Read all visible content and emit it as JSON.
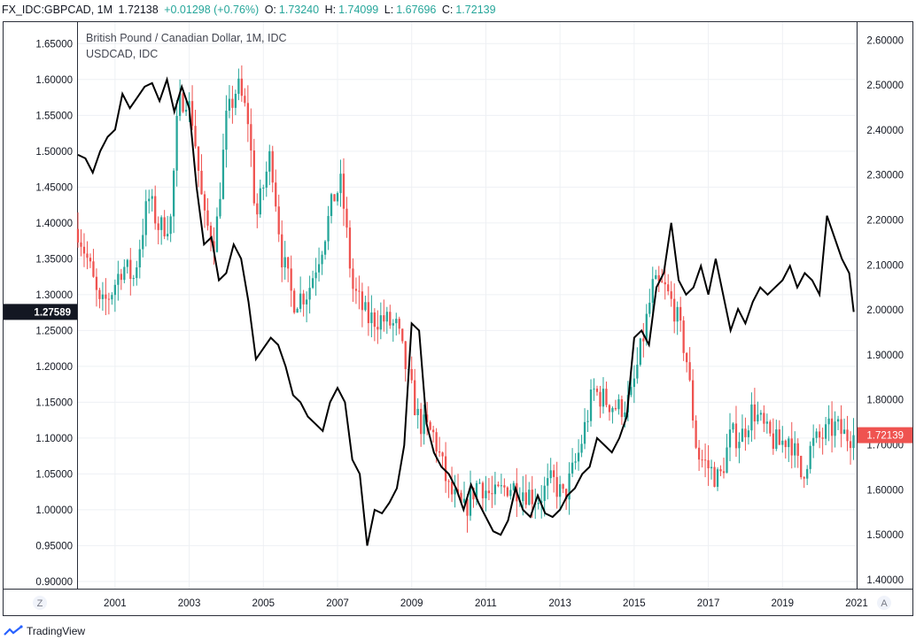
{
  "header": {
    "symbol": "FX_IDC:GBPCAD, 1M",
    "last": "1.72138",
    "change": "+0.01298 (+0.76%)",
    "o_label": "O:",
    "o_value": "1.73240",
    "h_label": "H:",
    "h_value": "1.74099",
    "l_label": "L:",
    "l_value": "1.67696",
    "c_label": "C:",
    "c_value": "1.72139",
    "up_color": "#26a69a"
  },
  "legend": {
    "main_title": "British Pound / Canadian Dollar, 1M, IDC",
    "overlay_title": "USDCAD, IDC"
  },
  "footer": {
    "brand": "TradingView",
    "icon": "tradingview-logo-icon"
  },
  "corner_buttons": {
    "left": "Z",
    "right": "A"
  },
  "chart_data": {
    "type": "candlestick+line",
    "x_ticks": [
      "2001",
      "2003",
      "2005",
      "2007",
      "2009",
      "2011",
      "2013",
      "2015",
      "2017",
      "2019",
      "2021"
    ],
    "x_range": [
      2000.0,
      2021.0
    ],
    "left_axis": {
      "series": "USDCAD",
      "ticks": [
        "1.65000",
        "1.60000",
        "1.55000",
        "1.50000",
        "1.45000",
        "1.40000",
        "1.35000",
        "1.30000",
        "1.25000",
        "1.20000",
        "1.15000",
        "1.10000",
        "1.05000",
        "1.00000",
        "0.95000",
        "0.90000"
      ],
      "range": [
        0.89,
        1.68
      ],
      "current_label": "1.27589",
      "current_value": 1.27589,
      "label_color": "#131722"
    },
    "right_axis": {
      "series": "GBPCAD",
      "ticks": [
        "2.60000",
        "2.50000",
        "2.40000",
        "2.30000",
        "2.20000",
        "2.10000",
        "2.00000",
        "1.90000",
        "1.80000",
        "1.70000",
        "1.60000",
        "1.50000",
        "1.40000"
      ],
      "range": [
        1.38,
        2.64
      ],
      "current_label": "1.72139",
      "current_value": 1.72139,
      "label_color": "#ef5350"
    },
    "up_color": "#26a69a",
    "down_color": "#ef5350",
    "line_color": "#000000",
    "grid": true,
    "gbpcad_anchors": [
      [
        2000.0,
        2.18
      ],
      [
        2000.3,
        2.1
      ],
      [
        2000.6,
        2.0
      ],
      [
        2000.9,
        2.04
      ],
      [
        2001.2,
        2.1
      ],
      [
        2001.5,
        2.07
      ],
      [
        2001.9,
        2.25
      ],
      [
        2002.2,
        2.18
      ],
      [
        2002.5,
        2.2
      ],
      [
        2002.7,
        2.45
      ],
      [
        2002.9,
        2.48
      ],
      [
        2003.1,
        2.42
      ],
      [
        2003.4,
        2.2
      ],
      [
        2003.7,
        2.15
      ],
      [
        2004.0,
        2.42
      ],
      [
        2004.3,
        2.5
      ],
      [
        2004.6,
        2.42
      ],
      [
        2004.8,
        2.2
      ],
      [
        2005.2,
        2.35
      ],
      [
        2005.5,
        2.12
      ],
      [
        2005.8,
        2.02
      ],
      [
        2006.2,
        2.04
      ],
      [
        2006.6,
        2.15
      ],
      [
        2006.9,
        2.25
      ],
      [
        2007.1,
        2.28
      ],
      [
        2007.4,
        2.05
      ],
      [
        2007.8,
        1.98
      ],
      [
        2008.2,
        1.98
      ],
      [
        2008.6,
        1.96
      ],
      [
        2008.9,
        1.85
      ],
      [
        2009.2,
        1.75
      ],
      [
        2009.6,
        1.72
      ],
      [
        2010.0,
        1.6
      ],
      [
        2010.4,
        1.55
      ],
      [
        2010.8,
        1.62
      ],
      [
        2011.2,
        1.58
      ],
      [
        2011.6,
        1.61
      ],
      [
        2012.0,
        1.6
      ],
      [
        2012.4,
        1.58
      ],
      [
        2012.8,
        1.62
      ],
      [
        2013.1,
        1.58
      ],
      [
        2013.5,
        1.68
      ],
      [
        2013.9,
        1.82
      ],
      [
        2014.2,
        1.8
      ],
      [
        2014.6,
        1.78
      ],
      [
        2014.9,
        1.8
      ],
      [
        2015.2,
        1.92
      ],
      [
        2015.5,
        2.05
      ],
      [
        2015.8,
        2.05
      ],
      [
        2016.1,
        2.0
      ],
      [
        2016.4,
        1.9
      ],
      [
        2016.7,
        1.68
      ],
      [
        2017.0,
        1.65
      ],
      [
        2017.3,
        1.62
      ],
      [
        2017.6,
        1.72
      ],
      [
        2017.9,
        1.72
      ],
      [
        2018.2,
        1.78
      ],
      [
        2018.6,
        1.72
      ],
      [
        2018.9,
        1.7
      ],
      [
        2019.2,
        1.72
      ],
      [
        2019.5,
        1.63
      ],
      [
        2019.8,
        1.7
      ],
      [
        2020.1,
        1.72
      ],
      [
        2020.4,
        1.74
      ],
      [
        2020.7,
        1.72
      ],
      [
        2020.92,
        1.72139
      ]
    ],
    "usdcad_points": [
      [
        2000.0,
        1.495
      ],
      [
        2000.2,
        1.49
      ],
      [
        2000.4,
        1.47
      ],
      [
        2000.6,
        1.5
      ],
      [
        2000.8,
        1.52
      ],
      [
        2001.0,
        1.53
      ],
      [
        2001.2,
        1.58
      ],
      [
        2001.4,
        1.56
      ],
      [
        2001.6,
        1.575
      ],
      [
        2001.8,
        1.59
      ],
      [
        2002.0,
        1.595
      ],
      [
        2002.2,
        1.57
      ],
      [
        2002.4,
        1.6
      ],
      [
        2002.6,
        1.555
      ],
      [
        2002.8,
        1.59
      ],
      [
        2003.0,
        1.56
      ],
      [
        2003.2,
        1.45
      ],
      [
        2003.4,
        1.37
      ],
      [
        2003.6,
        1.38
      ],
      [
        2003.8,
        1.32
      ],
      [
        2004.0,
        1.33
      ],
      [
        2004.2,
        1.37
      ],
      [
        2004.4,
        1.35
      ],
      [
        2004.6,
        1.29
      ],
      [
        2004.8,
        1.21
      ],
      [
        2005.0,
        1.225
      ],
      [
        2005.2,
        1.24
      ],
      [
        2005.4,
        1.23
      ],
      [
        2005.6,
        1.2
      ],
      [
        2005.8,
        1.16
      ],
      [
        2006.0,
        1.15
      ],
      [
        2006.2,
        1.13
      ],
      [
        2006.4,
        1.12
      ],
      [
        2006.6,
        1.11
      ],
      [
        2006.8,
        1.15
      ],
      [
        2007.0,
        1.17
      ],
      [
        2007.2,
        1.15
      ],
      [
        2007.4,
        1.07
      ],
      [
        2007.6,
        1.05
      ],
      [
        2007.8,
        0.95
      ],
      [
        2008.0,
        1.0
      ],
      [
        2008.2,
        0.995
      ],
      [
        2008.4,
        1.01
      ],
      [
        2008.6,
        1.03
      ],
      [
        2008.8,
        1.09
      ],
      [
        2009.0,
        1.26
      ],
      [
        2009.2,
        1.25
      ],
      [
        2009.4,
        1.12
      ],
      [
        2009.6,
        1.08
      ],
      [
        2009.8,
        1.06
      ],
      [
        2010.0,
        1.05
      ],
      [
        2010.2,
        1.03
      ],
      [
        2010.4,
        1.0
      ],
      [
        2010.6,
        1.035
      ],
      [
        2010.8,
        1.01
      ],
      [
        2011.0,
        0.99
      ],
      [
        2011.2,
        0.97
      ],
      [
        2011.4,
        0.965
      ],
      [
        2011.6,
        0.985
      ],
      [
        2011.8,
        1.03
      ],
      [
        2012.0,
        1.0
      ],
      [
        2012.2,
        0.99
      ],
      [
        2012.4,
        1.02
      ],
      [
        2012.6,
        0.995
      ],
      [
        2012.8,
        0.99
      ],
      [
        2013.0,
        1.0
      ],
      [
        2013.2,
        1.02
      ],
      [
        2013.4,
        1.03
      ],
      [
        2013.6,
        1.05
      ],
      [
        2013.8,
        1.06
      ],
      [
        2014.0,
        1.1
      ],
      [
        2014.2,
        1.09
      ],
      [
        2014.4,
        1.08
      ],
      [
        2014.6,
        1.1
      ],
      [
        2014.8,
        1.13
      ],
      [
        2015.0,
        1.24
      ],
      [
        2015.2,
        1.25
      ],
      [
        2015.4,
        1.23
      ],
      [
        2015.6,
        1.31
      ],
      [
        2015.8,
        1.33
      ],
      [
        2016.0,
        1.4
      ],
      [
        2016.2,
        1.32
      ],
      [
        2016.4,
        1.3
      ],
      [
        2016.6,
        1.31
      ],
      [
        2016.8,
        1.34
      ],
      [
        2017.0,
        1.3
      ],
      [
        2017.2,
        1.35
      ],
      [
        2017.4,
        1.3
      ],
      [
        2017.6,
        1.25
      ],
      [
        2017.8,
        1.28
      ],
      [
        2018.0,
        1.26
      ],
      [
        2018.2,
        1.29
      ],
      [
        2018.4,
        1.31
      ],
      [
        2018.6,
        1.3
      ],
      [
        2018.8,
        1.31
      ],
      [
        2019.0,
        1.32
      ],
      [
        2019.2,
        1.34
      ],
      [
        2019.4,
        1.31
      ],
      [
        2019.6,
        1.33
      ],
      [
        2019.8,
        1.32
      ],
      [
        2020.0,
        1.3
      ],
      [
        2020.2,
        1.41
      ],
      [
        2020.4,
        1.38
      ],
      [
        2020.6,
        1.35
      ],
      [
        2020.8,
        1.33
      ],
      [
        2020.92,
        1.27589
      ]
    ]
  }
}
